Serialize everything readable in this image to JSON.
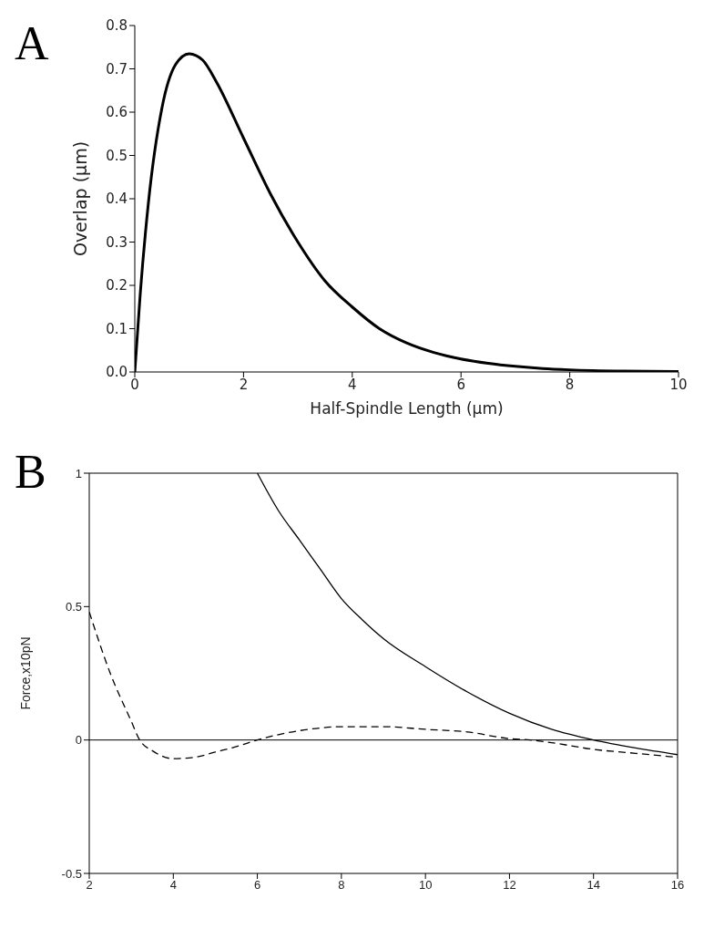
{
  "chart_data": [
    {
      "type": "line",
      "title": "A",
      "xlabel": "Half-Spindle Length (µm)",
      "ylabel": "Overlap (µm)",
      "xlim": [
        0,
        10
      ],
      "xticks": [
        0,
        2,
        4,
        6,
        8,
        10
      ],
      "ylim": [
        0,
        0.8
      ],
      "yticks": [
        {
          "value": 0,
          "label": "0.0"
        },
        0.1,
        0.2,
        0.3,
        0.4,
        0.5,
        0.6,
        0.7,
        0.8
      ],
      "marker": "none",
      "line_style": "solid",
      "grid": false,
      "legend": false,
      "series": [
        {
          "color": "#000000",
          "x": [
            0,
            0.1,
            0.25,
            0.5,
            0.75,
            1,
            1.25,
            1.5,
            2,
            2.5,
            3,
            3.5,
            4,
            4.5,
            5,
            5.5,
            6,
            6.5,
            7,
            7.5,
            8,
            9,
            10
          ],
          "values": [
            0,
            0.18,
            0.39,
            0.61,
            0.71,
            0.735,
            0.72,
            0.67,
            0.54,
            0.41,
            0.3,
            0.21,
            0.15,
            0.1,
            0.067,
            0.045,
            0.03,
            0.02,
            0.013,
            0.008,
            0.005,
            0.002,
            0.001
          ]
        }
      ]
    },
    {
      "type": "line",
      "title": "B",
      "ylabel": "Force,x10pN",
      "xlim": [
        2,
        16
      ],
      "xticks": [
        2,
        4,
        6,
        8,
        10,
        12,
        14,
        16
      ],
      "ylim": [
        -0.5,
        1
      ],
      "yticks": [
        -0.5,
        0,
        0.5,
        1
      ],
      "marker": "none",
      "grid": false,
      "legend": false,
      "ref_lines": [
        {
          "axis": "y",
          "value": 0,
          "color": "#000000"
        }
      ],
      "series": [
        {
          "color": "#000000",
          "line_style": "solid",
          "x": [
            6,
            6.5,
            7,
            7.5,
            8,
            8.5,
            9,
            10,
            11,
            12,
            13,
            14,
            15,
            16
          ],
          "values": [
            1,
            0.86,
            0.75,
            0.64,
            0.53,
            0.45,
            0.38,
            0.275,
            0.18,
            0.1,
            0.04,
            0,
            -0.03,
            -0.055
          ]
        },
        {
          "color": "#000000",
          "line_style": "dashed",
          "x": [
            2,
            2.5,
            3,
            3.2,
            3.5,
            4,
            4.5,
            5,
            5.5,
            6,
            6.5,
            7,
            7.5,
            8,
            9,
            10,
            11,
            12,
            12.5,
            13,
            14,
            15,
            16
          ],
          "values": [
            0.48,
            0.25,
            0.07,
            0,
            -0.04,
            -0.07,
            -0.065,
            -0.045,
            -0.025,
            0,
            0.02,
            0.035,
            0.045,
            0.05,
            0.05,
            0.04,
            0.03,
            0.005,
            0,
            -0.01,
            -0.035,
            -0.05,
            -0.065
          ]
        }
      ]
    }
  ]
}
